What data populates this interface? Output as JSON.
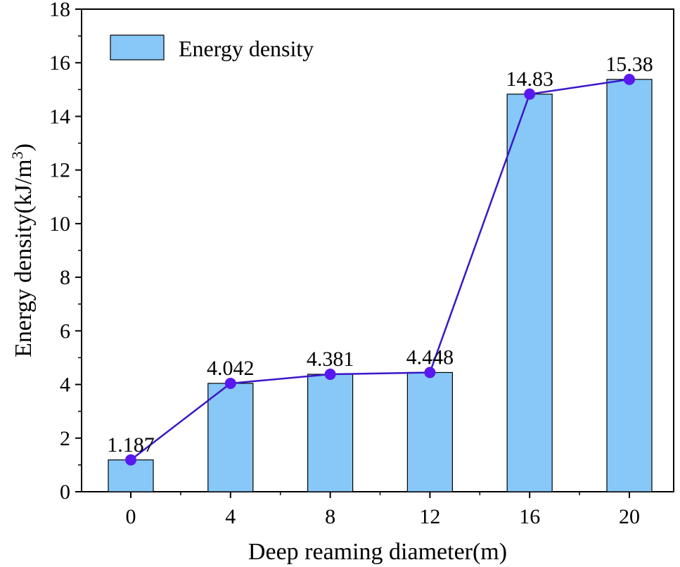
{
  "chart_data": {
    "type": "bar",
    "categories": [
      "0",
      "4",
      "8",
      "12",
      "16",
      "20"
    ],
    "series": [
      {
        "name": "Energy density",
        "values": [
          1.187,
          4.042,
          4.381,
          4.448,
          14.83,
          15.38
        ],
        "data_labels": [
          "1.187",
          "4.042",
          "4.381",
          "4.448",
          "14.83",
          "15.38"
        ]
      }
    ],
    "overlay_line": true,
    "xlabel": "Deep reaming diameter(m)",
    "ylabel_main": "Energy density(kJ/m",
    "ylabel_sup": "3",
    "ylabel_close": ")",
    "ylim": [
      0,
      18
    ],
    "yticks": [
      "0",
      "2",
      "4",
      "6",
      "8",
      "10",
      "12",
      "14",
      "16",
      "18"
    ],
    "grid": false,
    "legend_placement": "top-left",
    "colors": {
      "bar_fill": "#87C8F8",
      "bar_stroke": "#000000",
      "line": "#3B17C8",
      "marker": "#5A18F0"
    }
  }
}
